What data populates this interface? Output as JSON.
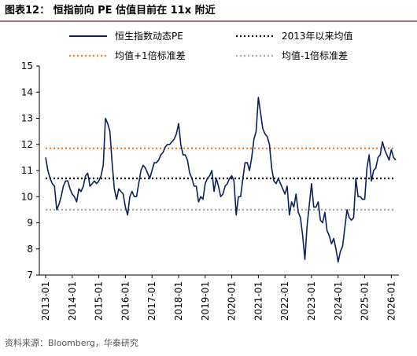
{
  "chart_data": {
    "type": "line",
    "title": "图表12： 恒指前向 PE 估值目前在 11x 附近",
    "source": "资料来源：Bloomberg，华泰研究",
    "x": [
      "2013-01",
      "2013-02",
      "2013-03",
      "2013-04",
      "2013-05",
      "2013-06",
      "2013-07",
      "2013-08",
      "2013-09",
      "2013-10",
      "2013-11",
      "2013-12",
      "2014-01",
      "2014-02",
      "2014-03",
      "2014-04",
      "2014-05",
      "2014-06",
      "2014-07",
      "2014-08",
      "2014-09",
      "2014-10",
      "2014-11",
      "2014-12",
      "2015-01",
      "2015-02",
      "2015-03",
      "2015-04",
      "2015-05",
      "2015-06",
      "2015-07",
      "2015-08",
      "2015-09",
      "2015-10",
      "2015-11",
      "2015-12",
      "2016-01",
      "2016-02",
      "2016-03",
      "2016-04",
      "2016-05",
      "2016-06",
      "2016-07",
      "2016-08",
      "2016-09",
      "2016-10",
      "2016-11",
      "2016-12",
      "2017-01",
      "2017-02",
      "2017-03",
      "2017-04",
      "2017-05",
      "2017-06",
      "2017-07",
      "2017-08",
      "2017-09",
      "2017-10",
      "2017-11",
      "2017-12",
      "2018-01",
      "2018-02",
      "2018-03",
      "2018-04",
      "2018-05",
      "2018-06",
      "2018-07",
      "2018-08",
      "2018-09",
      "2018-10",
      "2018-11",
      "2018-12",
      "2019-01",
      "2019-02",
      "2019-03",
      "2019-04",
      "2019-05",
      "2019-06",
      "2019-07",
      "2019-08",
      "2019-09",
      "2019-10",
      "2019-11",
      "2019-12",
      "2020-01",
      "2020-02",
      "2020-03",
      "2020-04",
      "2020-05",
      "2020-06",
      "2020-07",
      "2020-08",
      "2020-09",
      "2020-10",
      "2020-11",
      "2020-12",
      "2021-01",
      "2021-02",
      "2021-03",
      "2021-04",
      "2021-05",
      "2021-06",
      "2021-07",
      "2021-08",
      "2021-09",
      "2021-10",
      "2021-11",
      "2021-12",
      "2022-01",
      "2022-02",
      "2022-03",
      "2022-04",
      "2022-05",
      "2022-06",
      "2022-07",
      "2022-08",
      "2022-09",
      "2022-10",
      "2022-11",
      "2022-12",
      "2023-01",
      "2023-02",
      "2023-03",
      "2023-04",
      "2023-05",
      "2023-06",
      "2023-07",
      "2023-08",
      "2023-09",
      "2023-10",
      "2023-11",
      "2023-12",
      "2024-01",
      "2024-02",
      "2024-03",
      "2024-04",
      "2024-05",
      "2024-06",
      "2024-07",
      "2024-08",
      "2024-09",
      "2024-10",
      "2024-11",
      "2024-12",
      "2025-01",
      "2025-02",
      "2025-03",
      "2025-04",
      "2025-05",
      "2025-06",
      "2025-07",
      "2025-08",
      "2025-09",
      "2025-10",
      "2025-11",
      "2025-12",
      "2026-01",
      "2026-02",
      "2026-03"
    ],
    "series": [
      {
        "name": "恒生指数动态PE",
        "color": "#0d1f5c",
        "values": [
          11.5,
          11.0,
          10.7,
          10.5,
          10.4,
          9.5,
          9.7,
          10.0,
          10.4,
          10.6,
          10.6,
          10.3,
          10.1,
          10.0,
          9.8,
          10.3,
          10.2,
          10.4,
          10.8,
          10.9,
          10.4,
          10.5,
          10.6,
          10.5,
          10.6,
          10.8,
          11.2,
          13.0,
          12.8,
          12.5,
          11.3,
          10.3,
          9.9,
          10.3,
          10.2,
          10.1,
          9.6,
          9.3,
          10.0,
          10.2,
          10.0,
          10.0,
          10.5,
          11.0,
          11.2,
          11.1,
          10.9,
          10.7,
          11.0,
          11.3,
          11.3,
          11.4,
          11.6,
          11.7,
          11.9,
          12.0,
          12.0,
          12.1,
          12.2,
          12.4,
          12.8,
          12.0,
          11.6,
          11.6,
          11.4,
          10.9,
          10.7,
          10.4,
          10.4,
          9.8,
          10.0,
          9.9,
          10.5,
          10.7,
          10.8,
          11.0,
          10.2,
          10.7,
          10.4,
          10.0,
          10.1,
          10.4,
          10.5,
          10.7,
          10.8,
          10.6,
          9.3,
          10.0,
          10.0,
          10.7,
          11.3,
          11.3,
          11.0,
          11.5,
          12.2,
          12.5,
          13.8,
          13.2,
          12.6,
          12.4,
          12.3,
          12.0,
          11.1,
          10.6,
          10.5,
          10.7,
          10.5,
          10.3,
          10.1,
          10.4,
          9.3,
          9.8,
          9.6,
          10.1,
          9.4,
          9.2,
          8.5,
          7.6,
          8.9,
          9.7,
          10.5,
          9.6,
          9.6,
          9.8,
          9.1,
          9.0,
          9.4,
          8.7,
          8.5,
          8.2,
          8.4,
          8.0,
          7.5,
          7.9,
          8.1,
          8.8,
          9.5,
          9.2,
          9.1,
          9.2,
          10.7,
          10.0,
          10.0,
          9.9,
          9.9,
          11.1,
          11.6,
          10.6,
          11.0,
          11.1,
          11.5,
          11.6,
          12.1,
          11.8,
          11.6,
          11.4,
          11.8,
          11.5,
          11.4
        ]
      }
    ],
    "hlines": [
      {
        "name": "2013年以来均值",
        "color": "#000000",
        "value": 10.7
      },
      {
        "name": "均值+1倍标准差",
        "color": "#f07c1c",
        "value": 11.85
      },
      {
        "name": "均值-1倍标准差",
        "color": "#a6a6a6",
        "value": 9.5
      }
    ],
    "xlim": [
      "2013-01",
      "2026-03"
    ],
    "xticks": [
      "2013-01",
      "2014-01",
      "2015-01",
      "2016-01",
      "2017-01",
      "2018-01",
      "2019-01",
      "2020-01",
      "2021-01",
      "2022-01",
      "2023-01",
      "2024-01",
      "2025-01",
      "2026-01"
    ],
    "ylim": [
      7,
      15
    ],
    "yticks": [
      7,
      8,
      9,
      10,
      11,
      12,
      13,
      14,
      15
    ]
  }
}
